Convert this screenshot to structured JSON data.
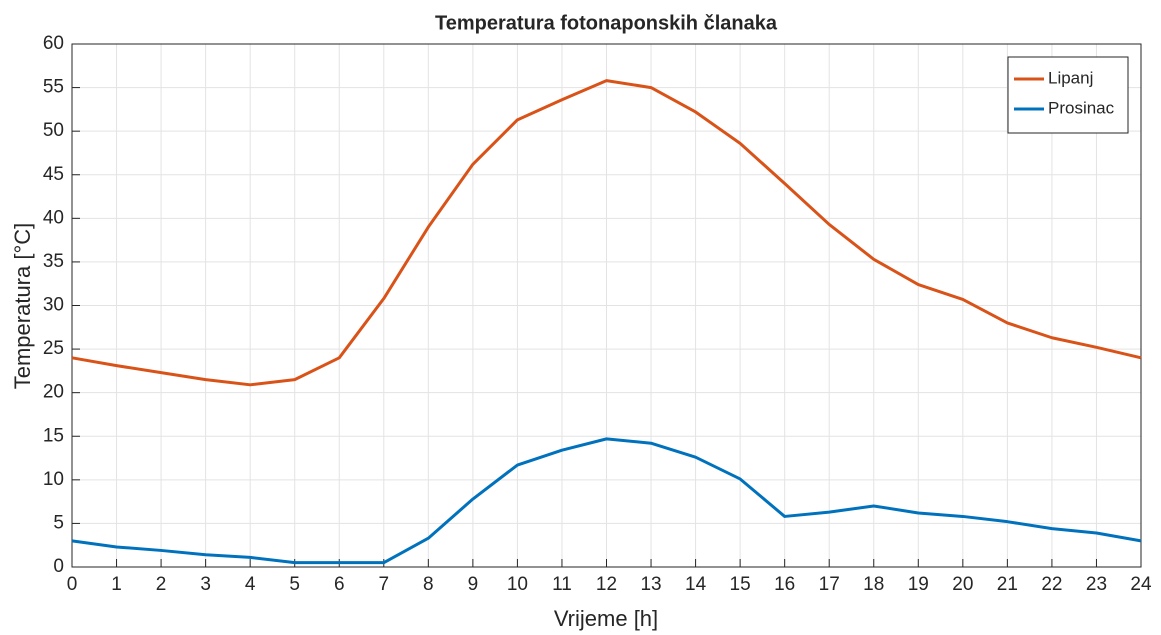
{
  "chart_data": {
    "type": "line",
    "title": "Temperatura fotonaponskih članaka",
    "xlabel": "Vrijeme [h]",
    "ylabel": "Temperatura [°C]",
    "x": [
      0,
      1,
      2,
      3,
      4,
      5,
      6,
      7,
      8,
      9,
      10,
      11,
      12,
      13,
      14,
      15,
      16,
      17,
      18,
      19,
      20,
      21,
      22,
      23,
      24
    ],
    "series": [
      {
        "name": "Lipanj",
        "color": "#d95319",
        "values": [
          24,
          23.1,
          22.3,
          21.5,
          20.9,
          21.5,
          24,
          30.8,
          39,
          46.2,
          51.3,
          53.6,
          55.8,
          55,
          52.2,
          48.6,
          44,
          39.3,
          35.3,
          32.4,
          30.7,
          28,
          26.3,
          25.2,
          24
        ]
      },
      {
        "name": "Prosinac",
        "color": "#0072bd",
        "values": [
          3,
          2.3,
          1.9,
          1.4,
          1.1,
          0.5,
          0.5,
          0.5,
          3.3,
          7.8,
          11.7,
          13.4,
          14.7,
          14.2,
          12.6,
          10.1,
          5.8,
          6.3,
          7,
          6.2,
          5.8,
          5.2,
          4.4,
          3.9,
          3
        ]
      }
    ],
    "xlim": [
      0,
      24
    ],
    "xticks": [
      0,
      1,
      2,
      3,
      4,
      5,
      6,
      7,
      8,
      9,
      10,
      11,
      12,
      13,
      14,
      15,
      16,
      17,
      18,
      19,
      20,
      21,
      22,
      23,
      24
    ],
    "ylim": [
      0,
      60
    ],
    "yticks": [
      0,
      5,
      10,
      15,
      20,
      25,
      30,
      35,
      40,
      45,
      50,
      55,
      60
    ],
    "grid": true,
    "legend": "northeast"
  }
}
